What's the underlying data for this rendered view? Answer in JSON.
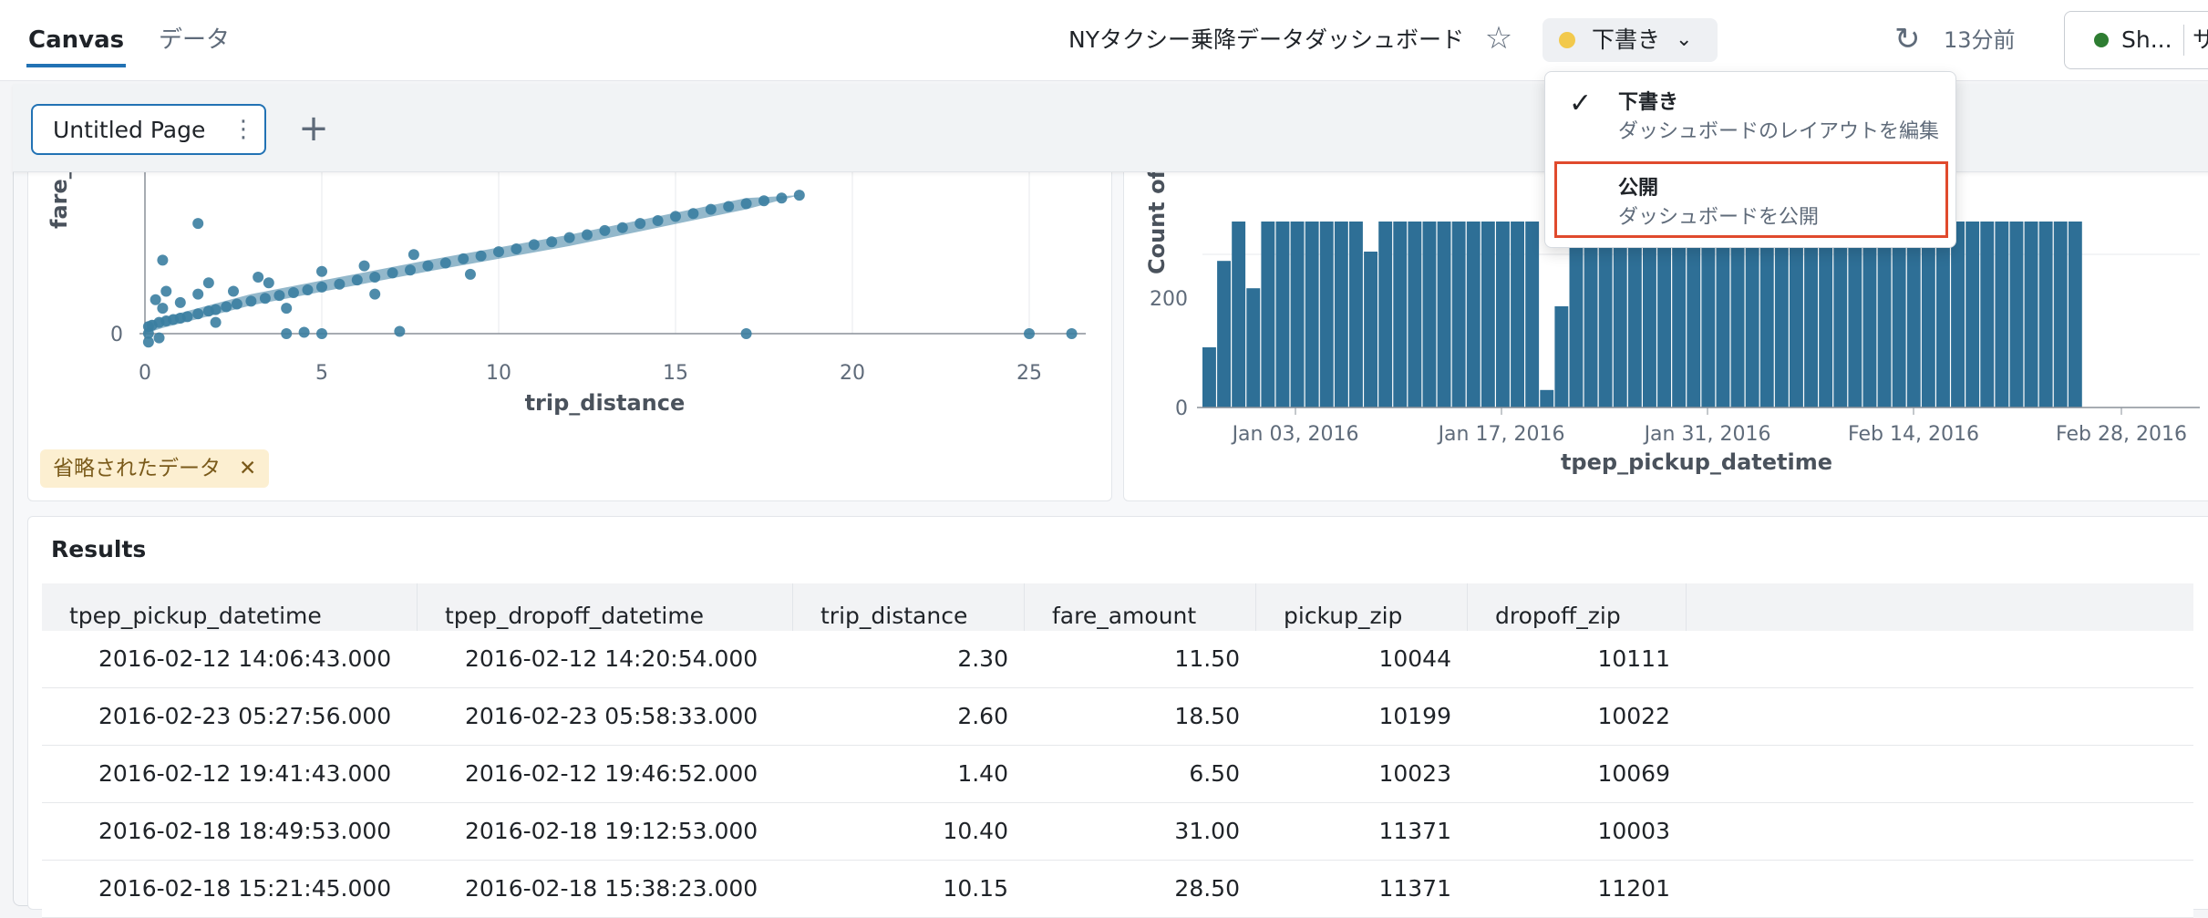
{
  "header": {
    "tabs": [
      {
        "label": "Canvas",
        "active": true
      },
      {
        "label": "データ",
        "active": false
      }
    ],
    "dashboard_title": "NYタクシー乗降データダッシュボード",
    "status_label": "下書き",
    "status_color": "#f2c94c",
    "last_updated": "13分前",
    "share_label": "Sh...",
    "share_more": "サ"
  },
  "pages": {
    "current_page": "Untitled Page"
  },
  "dropdown": {
    "items": [
      {
        "title": "下書き",
        "description": "ダッシュボードのレイアウトを編集",
        "checked": true
      },
      {
        "title": "公開",
        "description": "ダッシュボードを公開",
        "checked": false,
        "highlighted": true
      }
    ]
  },
  "scatter_widget": {
    "omitted_badge": "省略されたデータ"
  },
  "chart_data": [
    {
      "type": "scatter",
      "xlabel": "trip_distance",
      "ylabel": "fare_",
      "x_ticks": [
        0,
        5,
        10,
        15,
        20,
        25
      ],
      "y_ticks": [
        0
      ],
      "xlim": [
        0,
        26.5
      ],
      "series": [
        {
          "color": "#3b7ea1",
          "points": [
            [
              0.1,
              2.5
            ],
            [
              0.2,
              3
            ],
            [
              0.4,
              4
            ],
            [
              0.6,
              4.5
            ],
            [
              0.8,
              5
            ],
            [
              1.0,
              5.5
            ],
            [
              1.2,
              6
            ],
            [
              1.5,
              7
            ],
            [
              1.8,
              8
            ],
            [
              2.0,
              8.5
            ],
            [
              2.3,
              9.5
            ],
            [
              2.6,
              10.5
            ],
            [
              3.0,
              11.5
            ],
            [
              3.4,
              12.5
            ],
            [
              3.8,
              13.5
            ],
            [
              4.2,
              14.5
            ],
            [
              4.6,
              15.5
            ],
            [
              5.0,
              16.5
            ],
            [
              5.5,
              17.5
            ],
            [
              6.0,
              19
            ],
            [
              6.5,
              20
            ],
            [
              7.0,
              21.5
            ],
            [
              7.5,
              22.5
            ],
            [
              8.0,
              24
            ],
            [
              8.5,
              25
            ],
            [
              9.0,
              26.5
            ],
            [
              9.5,
              27.5
            ],
            [
              10.0,
              29
            ],
            [
              10.5,
              30
            ],
            [
              11.0,
              31.5
            ],
            [
              11.5,
              32.5
            ],
            [
              12.0,
              34
            ],
            [
              12.5,
              35
            ],
            [
              13.0,
              36.5
            ],
            [
              13.5,
              37.5
            ],
            [
              14.0,
              39
            ],
            [
              14.5,
              40
            ],
            [
              15.0,
              41.5
            ],
            [
              15.5,
              42.5
            ],
            [
              16.0,
              44
            ],
            [
              16.5,
              45
            ],
            [
              17.0,
              46
            ],
            [
              17.5,
              47
            ],
            [
              18.0,
              48
            ],
            [
              18.5,
              49
            ],
            [
              0.5,
              9
            ],
            [
              1.0,
              11
            ],
            [
              1.5,
              14
            ],
            [
              2.5,
              15
            ],
            [
              3.5,
              18
            ],
            [
              0.3,
              12
            ],
            [
              0.6,
              15
            ],
            [
              1.8,
              18
            ],
            [
              3.2,
              20
            ],
            [
              5.0,
              22
            ],
            [
              6.2,
              24
            ],
            [
              7.6,
              28
            ],
            [
              2.0,
              4
            ],
            [
              4.0,
              9
            ],
            [
              6.5,
              14
            ],
            [
              9.2,
              21
            ],
            [
              0.1,
              0.1
            ],
            [
              0.4,
              -1.5
            ],
            [
              0.1,
              -3
            ],
            [
              4.0,
              0
            ],
            [
              4.5,
              0.5
            ],
            [
              5.0,
              0
            ],
            [
              7.2,
              0.8
            ],
            [
              17.0,
              0
            ],
            [
              25.0,
              0
            ],
            [
              26.2,
              0
            ],
            [
              1.5,
              39
            ],
            [
              0.5,
              26
            ]
          ]
        }
      ]
    },
    {
      "type": "bar",
      "xlabel": "tpep_pickup_datetime",
      "ylabel": "Count of",
      "y_ticks": [
        0,
        200
      ],
      "x_ticks": [
        "Jan 03, 2016",
        "Jan 17, 2016",
        "Jan 31, 2016",
        "Feb 14, 2016",
        "Feb 28, 2016"
      ],
      "color": "#2e6f96",
      "values": [
        110,
        268,
        340,
        218,
        340,
        340,
        340,
        340,
        340,
        340,
        340,
        285,
        340,
        340,
        340,
        340,
        340,
        340,
        340,
        340,
        340,
        340,
        340,
        32,
        185,
        340,
        340,
        340,
        340,
        340,
        340,
        340,
        340,
        340,
        340,
        340,
        340,
        340,
        340,
        340,
        340,
        340,
        340,
        340,
        340,
        340,
        340,
        340,
        340,
        340,
        340,
        340,
        340,
        340,
        340,
        340,
        340,
        340,
        340,
        340
      ]
    }
  ],
  "results": {
    "title": "Results",
    "columns": [
      "tpep_pickup_datetime",
      "tpep_dropoff_datetime",
      "trip_distance",
      "fare_amount",
      "pickup_zip",
      "dropoff_zip"
    ],
    "rows": [
      [
        "2016-02-12 14:06:43.000",
        "2016-02-12 14:20:54.000",
        "2.30",
        "11.50",
        "10044",
        "10111"
      ],
      [
        "2016-02-23 05:27:56.000",
        "2016-02-23 05:58:33.000",
        "2.60",
        "18.50",
        "10199",
        "10022"
      ],
      [
        "2016-02-12 19:41:43.000",
        "2016-02-12 19:46:52.000",
        "1.40",
        "6.50",
        "10023",
        "10069"
      ],
      [
        "2016-02-18 18:49:53.000",
        "2016-02-18 19:12:53.000",
        "10.40",
        "31.00",
        "11371",
        "10003"
      ],
      [
        "2016-02-18 15:21:45.000",
        "2016-02-18 15:38:23.000",
        "10.15",
        "28.50",
        "11371",
        "11201"
      ]
    ]
  }
}
